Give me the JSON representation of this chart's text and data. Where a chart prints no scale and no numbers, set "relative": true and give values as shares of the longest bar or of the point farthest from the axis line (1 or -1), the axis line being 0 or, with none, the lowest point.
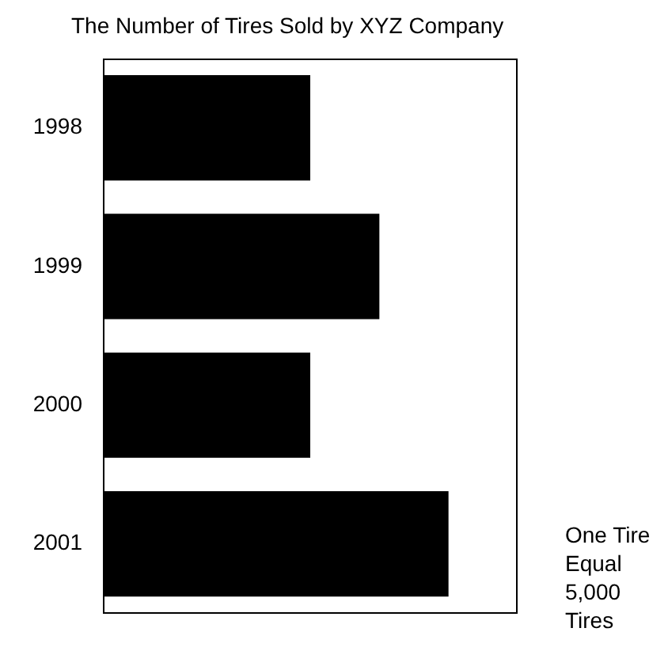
{
  "chart_data": {
    "type": "bar",
    "title": "The Number of Tires Sold by XYZ Company",
    "categories": [
      "1998",
      "1999",
      "2000",
      "2001"
    ],
    "values": [
      0.6,
      0.8,
      0.6,
      1
    ],
    "color": "#000000",
    "orientation": "horizontal",
    "relative": true,
    "annotations": [
      "One Tire Equal 5,000 Tires"
    ]
  }
}
